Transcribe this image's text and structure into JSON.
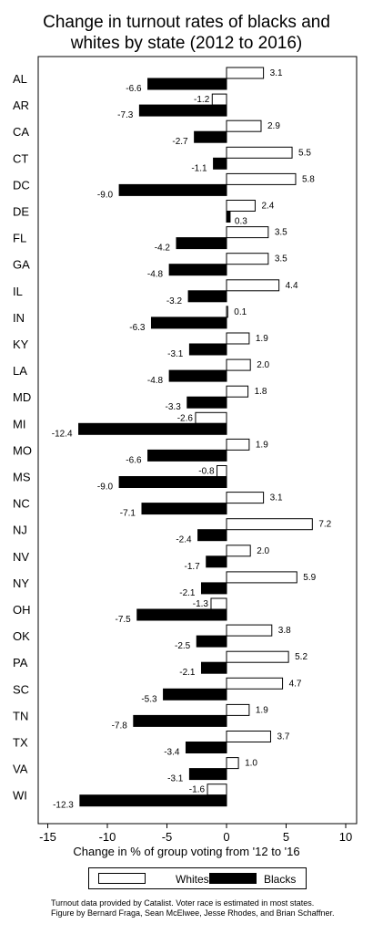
{
  "chart_data": {
    "type": "bar",
    "orientation": "horizontal",
    "title_line1": "Change in turnout rates of blacks and",
    "title_line2": "whites by state (2012 to 2016)",
    "xlabel": "Change in % of group voting from '12 to '16",
    "xlim": [
      -16,
      11
    ],
    "xticks": [
      -15,
      -10,
      -5,
      0,
      5,
      10
    ],
    "categories": [
      "AL",
      "AR",
      "CA",
      "CT",
      "DC",
      "DE",
      "FL",
      "GA",
      "IL",
      "IN",
      "KY",
      "LA",
      "MD",
      "MI",
      "MO",
      "MS",
      "NC",
      "NJ",
      "NV",
      "NY",
      "OH",
      "OK",
      "PA",
      "SC",
      "TN",
      "TX",
      "VA",
      "WI"
    ],
    "series": [
      {
        "name": "Whites",
        "color": "#ffffff",
        "values": [
          3.1,
          -1.2,
          2.9,
          5.5,
          5.8,
          2.4,
          3.5,
          3.5,
          4.4,
          0.1,
          1.9,
          2.0,
          1.8,
          -2.6,
          1.9,
          -0.8,
          3.1,
          7.2,
          2.0,
          5.9,
          -1.3,
          3.8,
          5.2,
          4.7,
          1.9,
          3.7,
          1.0,
          -1.6
        ]
      },
      {
        "name": "Blacks",
        "color": "#000000",
        "values": [
          -6.6,
          -7.3,
          -2.7,
          -1.1,
          -9.0,
          0.3,
          -4.2,
          -4.8,
          -3.2,
          -6.3,
          -3.1,
          -4.8,
          -3.3,
          -12.4,
          -6.6,
          -9.0,
          -7.1,
          -2.4,
          -1.7,
          -2.1,
          -7.5,
          -2.5,
          -2.1,
          -5.3,
          -7.8,
          -3.4,
          -3.1,
          -12.3
        ]
      }
    ],
    "grid": false,
    "legend_position": "bottom"
  },
  "credits": {
    "line1": "Turnout data provided by Catalist. Voter race is estimated in most states.",
    "line2": "Figure by Bernard Fraga, Sean McElwee, Jesse Rhodes, and Brian Schaffner."
  }
}
